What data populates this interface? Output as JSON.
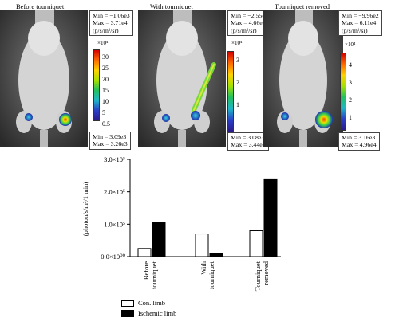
{
  "panels": [
    {
      "title": "Before tourniquet",
      "top_box": [
        "Min = −1.06e3",
        "Max = 3.71e4",
        "(p/s/m²/sr)"
      ],
      "bottom_box": [
        "Min = 3.09e3",
        "Max = 3.26e3"
      ],
      "colorbar_exponent": "×10⁴",
      "colorbar_ticks": [
        "30",
        "25",
        "20",
        "15",
        "10",
        "5",
        "0.5"
      ]
    },
    {
      "title": "With tourniquet",
      "top_box": [
        "Min = −2.55e4",
        "Max = 4.66e4",
        "(p/s/m²/sr)"
      ],
      "bottom_box": [
        "Min = 3.08e3",
        "Max = 3.44e4"
      ],
      "colorbar_exponent": "×10⁴",
      "colorbar_ticks": [
        "3",
        "2",
        "1"
      ]
    },
    {
      "title": "Tourniquet removed",
      "top_box": [
        "Min = −9.96e2",
        "Max = 6.11e4",
        "(p/s/m²/sr)"
      ],
      "bottom_box": [
        "Min = 3.16e3",
        "Max = 4.96e4"
      ],
      "colorbar_exponent": "×10⁴",
      "colorbar_ticks": [
        "4",
        "3",
        "2",
        "1"
      ]
    }
  ],
  "chart_data": {
    "type": "bar",
    "categories": [
      "Before tourniquet",
      "With tourniquet",
      "Tourniquet removed"
    ],
    "series": [
      {
        "name": "Con. limb",
        "values": [
          25000,
          70000,
          80000
        ],
        "color": "#ffffff"
      },
      {
        "name": "Ischemic limb",
        "values": [
          105000,
          10000,
          240000
        ],
        "color": "#000000"
      }
    ],
    "ylabel": "(photon/s/m²/1 min)",
    "ylim": [
      0,
      300000
    ],
    "ytick_values": [
      0,
      100000,
      200000,
      300000
    ],
    "ytick_labels": [
      "0.0×10⁰⁰",
      "1.0×10⁵",
      "2.0×10⁵",
      "3.0×10⁵"
    ],
    "legend_position": "bottom-left"
  }
}
